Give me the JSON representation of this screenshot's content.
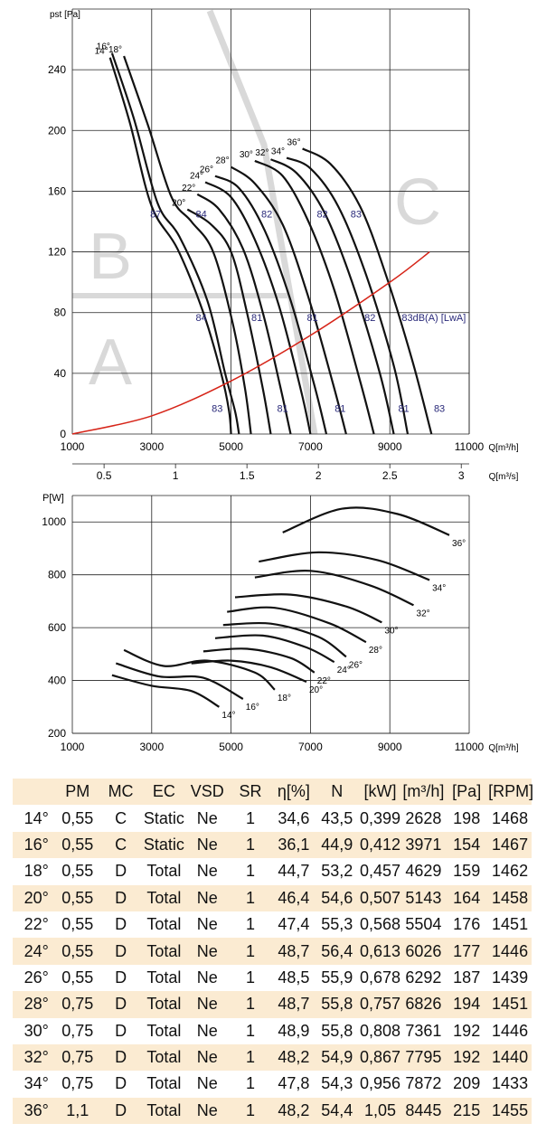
{
  "chart_data": [
    {
      "type": "line",
      "title": "",
      "xlabel": "Q[m³/h]",
      "ylabel": "pst [Pa]",
      "xlim": [
        1000,
        11000
      ],
      "ylim": [
        0,
        280
      ],
      "xticks": [
        1000,
        3000,
        5000,
        7000,
        9000,
        11000
      ],
      "yticks": [
        0,
        40,
        80,
        120,
        160,
        200,
        240
      ],
      "grid": true,
      "secondary_xlabel": "Q[m³/s]",
      "secondary_xticks": [
        0.5,
        1,
        1.5,
        2,
        2.5,
        3
      ],
      "region_labels": [
        "A",
        "B",
        "C"
      ],
      "series": [
        {
          "name": "14°",
          "x": [
            1950,
            2450,
            3000,
            3650,
            4300,
            4750,
            4950,
            5000
          ],
          "y": [
            248,
            205,
            150,
            122,
            80,
            40,
            15,
            0
          ]
        },
        {
          "name": "16°",
          "x": [
            2000,
            2550,
            3150,
            3700,
            4400,
            4850,
            5100,
            5200
          ],
          "y": [
            251,
            208,
            152,
            130,
            88,
            40,
            15,
            0
          ]
        },
        {
          "name": "18°",
          "x": [
            2300,
            2900,
            3500,
            4000,
            4550,
            5050,
            5350,
            5500
          ],
          "y": [
            249,
            204,
            156,
            140,
            120,
            72,
            30,
            0
          ]
        },
        {
          "name": "20°",
          "x": [
            3900,
            4500,
            5000,
            5400,
            5800,
            6000
          ],
          "y": [
            148,
            138,
            120,
            80,
            30,
            0
          ]
        },
        {
          "name": "22°",
          "x": [
            4150,
            4700,
            5300,
            5800,
            6250,
            6500
          ],
          "y": [
            158,
            148,
            122,
            80,
            30,
            0
          ]
        },
        {
          "name": "24°",
          "x": [
            4350,
            5000,
            5600,
            6200,
            6750,
            7000
          ],
          "y": [
            166,
            156,
            128,
            85,
            30,
            0
          ]
        },
        {
          "name": "26°",
          "x": [
            4600,
            5200,
            5850,
            6500,
            7100,
            7400
          ],
          "y": [
            170,
            162,
            134,
            88,
            32,
            0
          ]
        },
        {
          "name": "28°",
          "x": [
            5000,
            5600,
            6300,
            6950,
            7550,
            7900
          ],
          "y": [
            176,
            165,
            138,
            90,
            35,
            0
          ]
        },
        {
          "name": "30°",
          "x": [
            5600,
            6300,
            6950,
            7600,
            8250,
            8600
          ],
          "y": [
            180,
            170,
            140,
            95,
            35,
            0
          ]
        },
        {
          "name": "32°",
          "x": [
            6000,
            6650,
            7350,
            8050,
            8750,
            9100
          ],
          "y": [
            181,
            172,
            146,
            100,
            40,
            0
          ]
        },
        {
          "name": "34°",
          "x": [
            6400,
            7000,
            7700,
            8400,
            9100,
            9450
          ],
          "y": [
            182,
            175,
            150,
            105,
            45,
            0
          ]
        },
        {
          "name": "36°",
          "x": [
            6800,
            7500,
            8250,
            8900,
            9550,
            10050
          ],
          "y": [
            188,
            178,
            150,
            105,
            50,
            0
          ]
        },
        {
          "name": "System curve",
          "x": [
            1000,
            3000,
            5000,
            7000,
            9000,
            10000
          ],
          "y": [
            0,
            12,
            35,
            65,
            100,
            120
          ]
        }
      ],
      "annotations": [
        {
          "text": "87",
          "x": 3100,
          "y": 145
        },
        {
          "text": "84",
          "x": 4250,
          "y": 145
        },
        {
          "text": "82",
          "x": 5900,
          "y": 145
        },
        {
          "text": "82",
          "x": 7300,
          "y": 145
        },
        {
          "text": "83",
          "x": 8150,
          "y": 145
        },
        {
          "text": "84",
          "x": 4250,
          "y": 77
        },
        {
          "text": "81",
          "x": 5650,
          "y": 77
        },
        {
          "text": "81",
          "x": 7050,
          "y": 77
        },
        {
          "text": "82",
          "x": 8500,
          "y": 77
        },
        {
          "text": "83dB(A) [LwA]",
          "x": 9300,
          "y": 77
        },
        {
          "text": "83",
          "x": 4650,
          "y": 17
        },
        {
          "text": "81",
          "x": 6300,
          "y": 17
        },
        {
          "text": "81",
          "x": 7750,
          "y": 17
        },
        {
          "text": "81",
          "x": 9350,
          "y": 17
        },
        {
          "text": "83",
          "x": 10250,
          "y": 17
        }
      ]
    },
    {
      "type": "line",
      "title": "",
      "xlabel": "Q[m³/h]",
      "ylabel": "P[W]",
      "xlim": [
        1000,
        11000
      ],
      "ylim": [
        200,
        1100
      ],
      "xticks": [
        1000,
        3000,
        5000,
        7000,
        9000,
        11000
      ],
      "yticks": [
        200,
        400,
        600,
        800,
        1000
      ],
      "grid": true,
      "series": [
        {
          "name": "14°",
          "x": [
            2000,
            3000,
            4000,
            4700
          ],
          "y": [
            420,
            380,
            360,
            300
          ]
        },
        {
          "name": "16°",
          "x": [
            2100,
            3200,
            4300,
            5300
          ],
          "y": [
            465,
            415,
            410,
            330
          ]
        },
        {
          "name": "18°",
          "x": [
            2300,
            3300,
            4400,
            5600,
            6100
          ],
          "y": [
            515,
            455,
            475,
            430,
            365
          ]
        },
        {
          "name": "20°",
          "x": [
            4000,
            5000,
            6000,
            6900
          ],
          "y": [
            465,
            475,
            450,
            395
          ]
        },
        {
          "name": "22°",
          "x": [
            4300,
            5400,
            6500,
            7100
          ],
          "y": [
            510,
            520,
            485,
            430
          ]
        },
        {
          "name": "24°",
          "x": [
            4600,
            5800,
            6900,
            7600
          ],
          "y": [
            560,
            570,
            525,
            470
          ]
        },
        {
          "name": "26°",
          "x": [
            4800,
            6000,
            7200,
            7900
          ],
          "y": [
            610,
            615,
            565,
            490
          ]
        },
        {
          "name": "28°",
          "x": [
            4900,
            6100,
            7500,
            8400
          ],
          "y": [
            660,
            675,
            615,
            545
          ]
        },
        {
          "name": "30°",
          "x": [
            5100,
            6500,
            7900,
            8800
          ],
          "y": [
            715,
            725,
            680,
            620
          ]
        },
        {
          "name": "32°",
          "x": [
            5600,
            7000,
            8500,
            9600
          ],
          "y": [
            790,
            815,
            760,
            685
          ]
        },
        {
          "name": "34°",
          "x": [
            5700,
            7200,
            8700,
            10000
          ],
          "y": [
            850,
            885,
            855,
            780
          ]
        },
        {
          "name": "36°",
          "x": [
            6300,
            7800,
            9200,
            10500
          ],
          "y": [
            960,
            1050,
            1030,
            950
          ]
        }
      ]
    }
  ],
  "table": {
    "headers": [
      "",
      "PM",
      "MC",
      "EC",
      "VSD",
      "SR",
      "η[%]",
      "N",
      "[kW]",
      "[m³/h]",
      "[Pa]",
      "[RPM]"
    ],
    "rows": [
      [
        "14°",
        "0,55",
        "C",
        "Static",
        "Ne",
        "1",
        "34,6",
        "43,5",
        "0,399",
        "2628",
        "198",
        "1468"
      ],
      [
        "16°",
        "0,55",
        "C",
        "Static",
        "Ne",
        "1",
        "36,1",
        "44,9",
        "0,412",
        "3971",
        "154",
        "1467"
      ],
      [
        "18°",
        "0,55",
        "D",
        "Total",
        "Ne",
        "1",
        "44,7",
        "53,2",
        "0,457",
        "4629",
        "159",
        "1462"
      ],
      [
        "20°",
        "0,55",
        "D",
        "Total",
        "Ne",
        "1",
        "46,4",
        "54,6",
        "0,507",
        "5143",
        "164",
        "1458"
      ],
      [
        "22°",
        "0,55",
        "D",
        "Total",
        "Ne",
        "1",
        "47,4",
        "55,3",
        "0,568",
        "5504",
        "176",
        "1451"
      ],
      [
        "24°",
        "0,55",
        "D",
        "Total",
        "Ne",
        "1",
        "48,7",
        "56,4",
        "0,613",
        "6026",
        "177",
        "1446"
      ],
      [
        "26°",
        "0,55",
        "D",
        "Total",
        "Ne",
        "1",
        "48,5",
        "55,9",
        "0,678",
        "6292",
        "187",
        "1439"
      ],
      [
        "28°",
        "0,75",
        "D",
        "Total",
        "Ne",
        "1",
        "48,7",
        "55,8",
        "0,757",
        "6826",
        "194",
        "1451"
      ],
      [
        "30°",
        "0,75",
        "D",
        "Total",
        "Ne",
        "1",
        "48,9",
        "55,8",
        "0,808",
        "7361",
        "192",
        "1446"
      ],
      [
        "32°",
        "0,75",
        "D",
        "Total",
        "Ne",
        "1",
        "48,2",
        "54,9",
        "0,867",
        "7795",
        "192",
        "1440"
      ],
      [
        "34°",
        "0,75",
        "D",
        "Total",
        "Ne",
        "1",
        "47,8",
        "54,3",
        "0,956",
        "7872",
        "209",
        "1433"
      ],
      [
        "36°",
        "1,1",
        "D",
        "Total",
        "Ne",
        "1",
        "48,2",
        "54,4",
        "1,05",
        "8445",
        "215",
        "1455"
      ]
    ]
  },
  "colors": {
    "curve": "#111111",
    "system_curve": "#d62418",
    "annotation": "#2a2a7a",
    "watermark": "#d9d9d9",
    "table_stripe": "#fbebd2"
  }
}
